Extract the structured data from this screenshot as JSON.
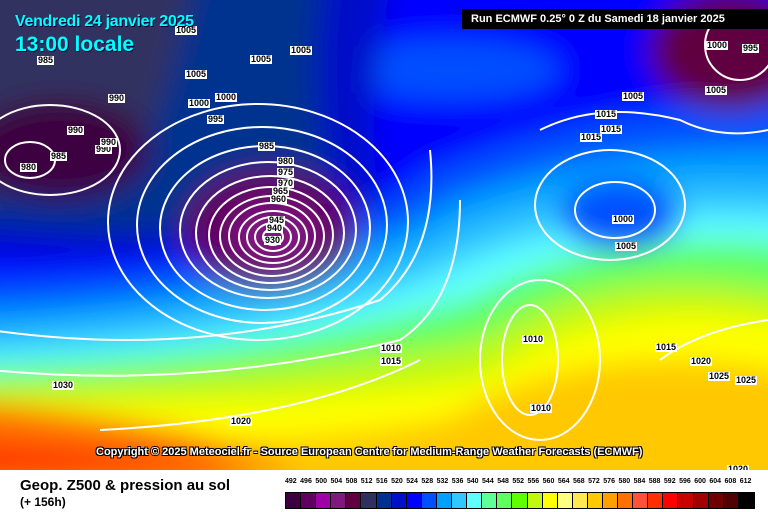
{
  "header": {
    "date": "Vendredi 24 janvier 2025",
    "time": "13:00 locale",
    "run": "Run ECMWF 0.25° 0 Z du Samedi 18 janvier 2025"
  },
  "copyright": "Copyright © 2025 Meteociel.fr - Source European Centre for Medium-Range Weather Forecasts (ECMWF)",
  "footer": {
    "title": "Geop. Z500 & pression au sol",
    "subtitle": "(+ 156h)"
  },
  "legend": {
    "labels": [
      "492",
      "496",
      "500",
      "504",
      "508",
      "512",
      "516",
      "520",
      "524",
      "528",
      "532",
      "536",
      "540",
      "544",
      "548",
      "552",
      "556",
      "560",
      "564",
      "568",
      "572",
      "576",
      "580",
      "584",
      "588",
      "592",
      "596",
      "600",
      "604",
      "608",
      "612"
    ],
    "colors": [
      "#3c0040",
      "#600060",
      "#a000a8",
      "#801880",
      "#600040",
      "#303060",
      "#003090",
      "#0010c8",
      "#0000ff",
      "#0050ff",
      "#00a0ff",
      "#30c8ff",
      "#60ffff",
      "#60ff98",
      "#60ff60",
      "#60ff00",
      "#c0f810",
      "#ffff00",
      "#ffff80",
      "#ffe850",
      "#ffc800",
      "#ffa000",
      "#ff7000",
      "#ff5038",
      "#ff3000",
      "#ff0000",
      "#c80000",
      "#a00000",
      "#700000",
      "#500000",
      "#000000"
    ]
  },
  "isobar_labels": [
    "1005",
    "985",
    "1005",
    "1005",
    "1005",
    "990",
    "1000",
    "1000",
    "990",
    "995",
    "990",
    "990",
    "985",
    "980",
    "985",
    "980",
    "975",
    "970",
    "965",
    "960",
    "945",
    "940",
    "930",
    "1010",
    "1015",
    "1030",
    "1020",
    "1015",
    "1015",
    "1015",
    "1000",
    "1005",
    "1005",
    "1010",
    "1010",
    "1015",
    "1020",
    "1025",
    "1025",
    "1000",
    "995",
    "1005",
    "1020"
  ]
}
